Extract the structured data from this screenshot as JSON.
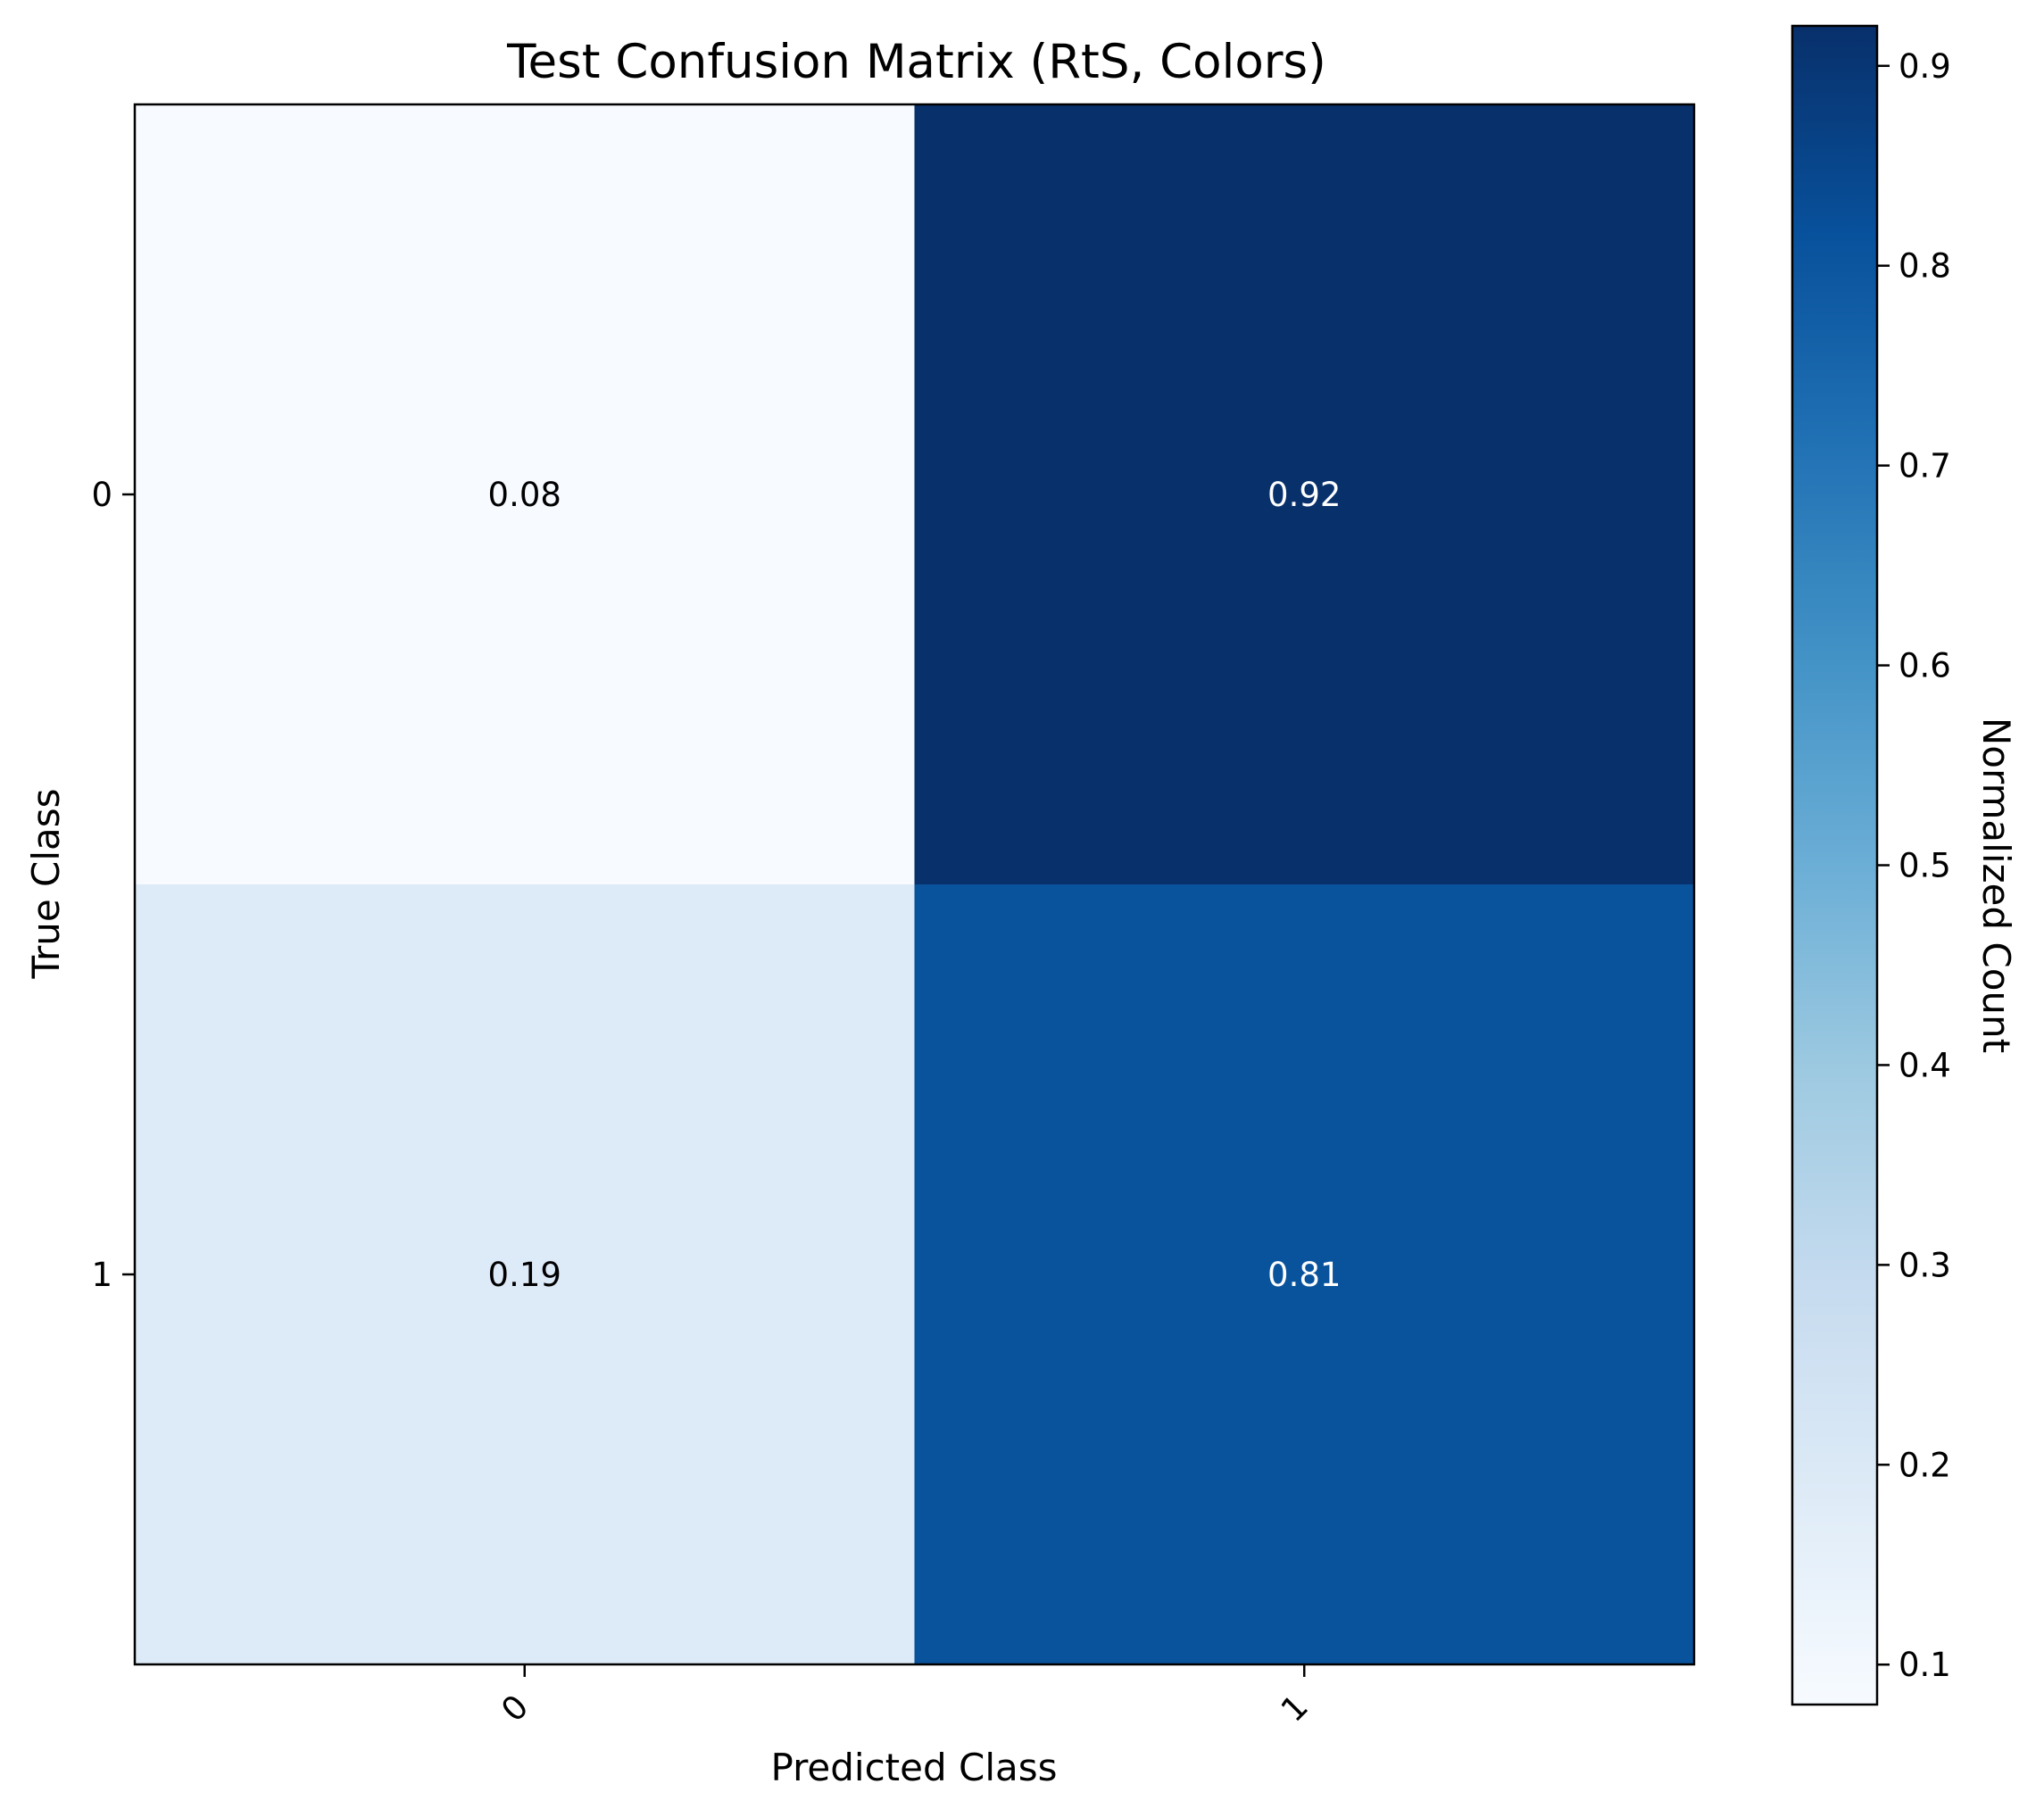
{
  "chart_data": {
    "type": "heatmap",
    "title": "Test Confusion Matrix (RtS, Colors)",
    "xlabel": "Predicted Class",
    "ylabel": "True Class",
    "x_categories": [
      "0",
      "1"
    ],
    "y_categories": [
      "0",
      "1"
    ],
    "matrix": [
      [
        0.08,
        0.92
      ],
      [
        0.19,
        0.81
      ]
    ],
    "cell_labels": [
      [
        "0.08",
        "0.92"
      ],
      [
        "0.19",
        "0.81"
      ]
    ],
    "colormap": "Blues",
    "colorbar": {
      "label": "Normalized Count",
      "range": [
        0.08,
        0.92
      ],
      "ticks": [
        "0.1",
        "0.2",
        "0.3",
        "0.4",
        "0.5",
        "0.6",
        "0.7",
        "0.8",
        "0.9"
      ]
    },
    "grid": false,
    "x_tick_rotation": "45 degrees"
  }
}
